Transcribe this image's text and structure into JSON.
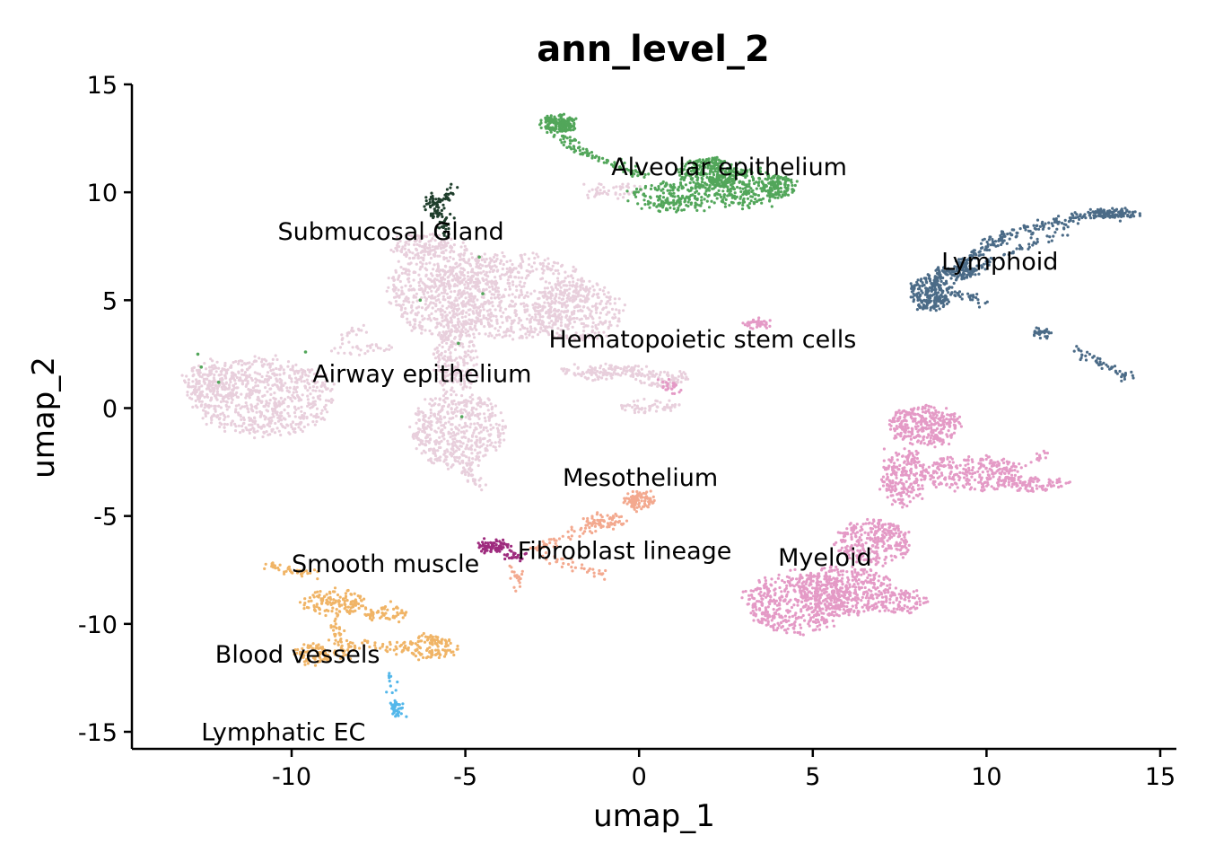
{
  "chart_data": {
    "type": "scatter",
    "title": "ann_level_2",
    "xlabel": "umap_1",
    "ylabel": "umap_2",
    "xlim": [
      -14.7,
      15.4
    ],
    "ylim": [
      -15.8,
      15
    ],
    "xticks": [
      -10,
      -5,
      0,
      5,
      10,
      15
    ],
    "yticks": [
      15,
      10,
      5,
      0,
      -5,
      -10,
      -15
    ],
    "xtick_labels": [
      "-10",
      "-5",
      "0",
      "5",
      "10",
      "15"
    ],
    "ytick_labels": [
      "15",
      "10",
      "5",
      "0",
      "-5",
      "-10",
      "-15"
    ],
    "grid": false,
    "legend": "none (labels placed on data)",
    "series": [
      {
        "name": "Airway epithelium",
        "color": "#e8cfdc",
        "label_position": [
          -9.4,
          1.2
        ],
        "regions": [
          {
            "cx": -10.8,
            "cy": 0.5,
            "rx": 2.0,
            "ry": 1.8,
            "n": 700
          },
          {
            "cx": -12.3,
            "cy": 1.0,
            "rx": 0.8,
            "ry": 1.2,
            "n": 150
          },
          {
            "cx": -5.6,
            "cy": 5.5,
            "rx": 1.6,
            "ry": 2.2,
            "n": 550
          },
          {
            "cx": -3.8,
            "cy": 5.2,
            "rx": 2.4,
            "ry": 2.0,
            "n": 650
          },
          {
            "cx": -1.8,
            "cy": 4.5,
            "rx": 1.3,
            "ry": 1.4,
            "n": 300
          },
          {
            "cx": -5.2,
            "cy": -1.0,
            "rx": 1.3,
            "ry": 1.8,
            "n": 500
          },
          {
            "cx": -5.3,
            "cy": 2.2,
            "rx": 0.6,
            "ry": 1.6,
            "n": 200
          },
          {
            "cx": -6.2,
            "cy": 7.5,
            "rx": 0.9,
            "ry": 0.6,
            "n": 120
          },
          {
            "cx": -1.0,
            "cy": 1.7,
            "rx": 1.2,
            "ry": 0.3,
            "n": 120
          },
          {
            "cx": 0.6,
            "cy": 1.4,
            "rx": 0.9,
            "ry": 0.4,
            "n": 90
          },
          {
            "cx": 0.3,
            "cy": 0.1,
            "rx": 0.8,
            "ry": 0.3,
            "n": 60
          },
          {
            "cx": -0.8,
            "cy": 10.1,
            "rx": 0.8,
            "ry": 0.3,
            "n": 50
          }
        ],
        "trails": [
          {
            "from": [
              -8.6,
              3.1
            ],
            "to": [
              -7.9,
              3.8
            ],
            "n": 20
          },
          {
            "from": [
              -8.8,
              2.6
            ],
            "to": [
              -7.0,
              2.8
            ],
            "n": 30
          },
          {
            "from": [
              -5.0,
              -2.8
            ],
            "to": [
              -4.6,
              -3.6
            ],
            "n": 30
          }
        ]
      },
      {
        "name": "Alveolar epithelium",
        "color": "#52a65a",
        "label_position": [
          -0.8,
          10.8
        ],
        "regions": [
          {
            "cx": -2.3,
            "cy": 13.2,
            "rx": 0.5,
            "ry": 0.35,
            "n": 160
          },
          {
            "cx": 2.0,
            "cy": 10.9,
            "rx": 0.9,
            "ry": 0.7,
            "n": 250
          },
          {
            "cx": 3.1,
            "cy": 10.2,
            "rx": 1.1,
            "ry": 0.85,
            "n": 280
          },
          {
            "cx": 1.0,
            "cy": 9.8,
            "rx": 1.2,
            "ry": 0.7,
            "n": 200
          },
          {
            "cx": 4.1,
            "cy": 10.3,
            "rx": 0.5,
            "ry": 0.45,
            "n": 80
          }
        ],
        "trails": [
          {
            "from": [
              -2.5,
              12.8
            ],
            "to": [
              -1.5,
              11.8
            ],
            "n": 45
          },
          {
            "from": [
              -1.5,
              11.8
            ],
            "to": [
              0.2,
              10.7
            ],
            "n": 55
          }
        ],
        "scatter_points": [
          [
            -4.6,
            7.0
          ],
          [
            -4.5,
            5.3
          ],
          [
            -6.3,
            5.0
          ],
          [
            -5.2,
            3.0
          ],
          [
            -12.7,
            2.5
          ],
          [
            -9.6,
            2.6
          ],
          [
            -5.1,
            -0.4
          ],
          [
            -12.6,
            1.9
          ],
          [
            -12.1,
            1.2
          ]
        ]
      },
      {
        "name": "Submucosal Gland",
        "color": "#1f3e2c",
        "label_position": [
          -10.4,
          7.8
        ],
        "regions": [
          {
            "cx": -5.9,
            "cy": 9.4,
            "rx": 0.2,
            "ry": 0.6,
            "n": 45
          },
          {
            "cx": -5.6,
            "cy": 8.5,
            "rx": 0.2,
            "ry": 0.6,
            "n": 30
          }
        ],
        "trails": [
          {
            "from": [
              -5.7,
              9.6
            ],
            "to": [
              -5.4,
              10.2
            ],
            "n": 20
          }
        ]
      },
      {
        "name": "Lymphoid",
        "color": "#4b6b87",
        "label_position": [
          8.7,
          6.4
        ],
        "regions": [
          {
            "cx": 8.4,
            "cy": 5.3,
            "rx": 0.55,
            "ry": 0.8,
            "n": 220
          },
          {
            "cx": 9.1,
            "cy": 6.3,
            "rx": 0.6,
            "ry": 0.3,
            "n": 100
          },
          {
            "cx": 13.6,
            "cy": 9.0,
            "rx": 0.7,
            "ry": 0.15,
            "n": 120
          },
          {
            "cx": 11.6,
            "cy": 3.5,
            "rx": 0.25,
            "ry": 0.12,
            "n": 30
          }
        ],
        "trails": [
          {
            "from": [
              9.2,
              6.6
            ],
            "to": [
              10.5,
              8.0
            ],
            "n": 90
          },
          {
            "from": [
              10.5,
              8.0
            ],
            "to": [
              13.0,
              9.0
            ],
            "n": 90
          },
          {
            "from": [
              9.3,
              6.2
            ],
            "to": [
              12.5,
              8.5
            ],
            "n": 60
          },
          {
            "from": [
              9.0,
              5.6
            ],
            "to": [
              10.0,
              4.8
            ],
            "n": 30
          },
          {
            "from": [
              12.6,
              2.7
            ],
            "to": [
              14.1,
              1.4
            ],
            "n": 50
          }
        ]
      },
      {
        "name": "Hematopoietic stem cells",
        "color": "#e49ac6",
        "label_position": [
          -2.6,
          2.8
        ],
        "regions": [
          {
            "cx": 3.4,
            "cy": 3.9,
            "rx": 0.4,
            "ry": 0.2,
            "n": 40
          },
          {
            "cx": 0.9,
            "cy": 1.0,
            "rx": 0.35,
            "ry": 0.3,
            "n": 25
          }
        ]
      },
      {
        "name": "Myeloid",
        "color": "#e49ac6",
        "label_position": [
          4.0,
          -7.3
        ],
        "regions": [
          {
            "cx": 8.2,
            "cy": -0.8,
            "rx": 1.0,
            "ry": 0.9,
            "n": 320
          },
          {
            "cx": 7.6,
            "cy": -3.2,
            "rx": 0.6,
            "ry": 1.4,
            "n": 220
          },
          {
            "cx": 9.6,
            "cy": -3.0,
            "rx": 1.4,
            "ry": 0.8,
            "n": 280
          },
          {
            "cx": 11.4,
            "cy": -3.5,
            "rx": 0.9,
            "ry": 0.3,
            "n": 90
          },
          {
            "cx": 6.8,
            "cy": -6.2,
            "rx": 1.1,
            "ry": 1.0,
            "n": 300
          },
          {
            "cx": 4.6,
            "cy": -9.0,
            "rx": 1.5,
            "ry": 1.4,
            "n": 500
          },
          {
            "cx": 6.0,
            "cy": -8.4,
            "rx": 1.4,
            "ry": 1.1,
            "n": 350
          },
          {
            "cx": 7.5,
            "cy": -9.0,
            "rx": 0.8,
            "ry": 0.5,
            "n": 90
          }
        ],
        "trails": [
          {
            "from": [
              11.0,
              -2.8
            ],
            "to": [
              11.6,
              -2.1
            ],
            "n": 15
          }
        ]
      },
      {
        "name": "Mesothelium",
        "color": "#f3a98f",
        "label_position": [
          -2.2,
          -3.6
        ],
        "regions": [
          {
            "cx": 0.0,
            "cy": -4.3,
            "rx": 0.4,
            "ry": 0.4,
            "n": 90
          },
          {
            "cx": -1.0,
            "cy": -5.3,
            "rx": 0.6,
            "ry": 0.35,
            "n": 70
          }
        ],
        "trails": [
          {
            "from": [
              -1.5,
              -5.5
            ],
            "to": [
              -3.0,
              -6.6
            ],
            "n": 40
          },
          {
            "from": [
              -2.8,
              -6.8
            ],
            "to": [
              -0.9,
              -7.8
            ],
            "n": 35
          },
          {
            "from": [
              -3.6,
              -7.2
            ],
            "to": [
              -3.5,
              -8.3
            ],
            "n": 20
          }
        ]
      },
      {
        "name": "Fibroblast lineage",
        "color": "#9e2b7e",
        "label_position": [
          -3.5,
          -7.0
        ],
        "regions": [
          {
            "cx": -4.2,
            "cy": -6.4,
            "rx": 0.45,
            "ry": 0.25,
            "n": 70
          },
          {
            "cx": -3.6,
            "cy": -6.8,
            "rx": 0.3,
            "ry": 0.2,
            "n": 25
          }
        ]
      },
      {
        "name": "Smooth muscle",
        "color": "#f0b466",
        "label_position": [
          -10.0,
          -7.6
        ],
        "regions": [
          {
            "cx": -8.8,
            "cy": -9.0,
            "rx": 0.9,
            "ry": 0.6,
            "n": 130
          },
          {
            "cx": -7.3,
            "cy": -9.5,
            "rx": 0.6,
            "ry": 0.3,
            "n": 60
          },
          {
            "cx": -6.1,
            "cy": -11.1,
            "rx": 0.8,
            "ry": 0.6,
            "n": 130
          },
          {
            "cx": -9.3,
            "cy": -11.4,
            "rx": 0.6,
            "ry": 0.5,
            "n": 80
          }
        ],
        "trails": [
          {
            "from": [
              -10.8,
              -7.2
            ],
            "to": [
              -9.3,
              -7.7
            ],
            "n": 40
          },
          {
            "from": [
              -8.8,
              -9.8
            ],
            "to": [
              -8.4,
              -11.6
            ],
            "n": 40
          },
          {
            "from": [
              -8.5,
              -11.0
            ],
            "to": [
              -6.8,
              -11.0
            ],
            "n": 40
          }
        ]
      },
      {
        "name": "Blood vessels",
        "color": "#f0b466",
        "label_position": [
          -12.2,
          -11.8
        ]
      },
      {
        "name": "Lymphatic EC",
        "color": "#53b7ea",
        "label_position": [
          -12.6,
          -15.4
        ],
        "regions": [
          {
            "cx": -7.0,
            "cy": -13.9,
            "rx": 0.15,
            "ry": 0.4,
            "n": 40
          }
        ],
        "trails": [
          {
            "from": [
              -7.2,
              -12.3
            ],
            "to": [
              -7.1,
              -13.5
            ],
            "n": 10
          }
        ]
      }
    ]
  }
}
